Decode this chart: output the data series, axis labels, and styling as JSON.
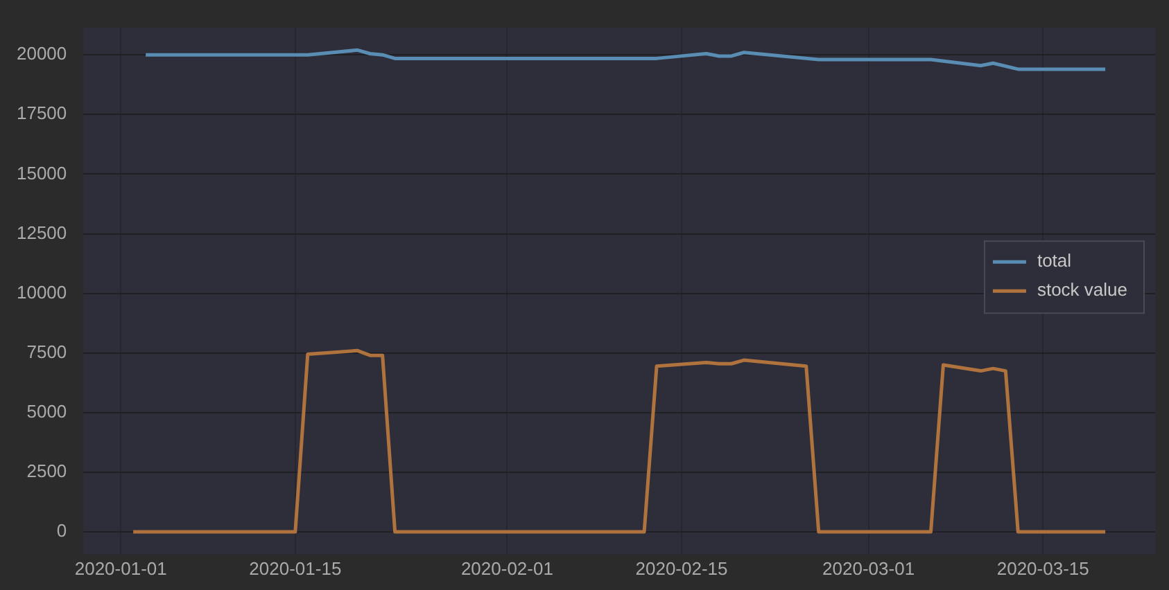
{
  "chart_data": {
    "type": "line",
    "xlim": [
      "2019-12-29",
      "2020-03-24"
    ],
    "xticks": [
      "2020-01-01",
      "2020-01-15",
      "2020-02-01",
      "2020-02-15",
      "2020-03-01",
      "2020-03-15"
    ],
    "ylim": [
      -950,
      21150
    ],
    "yticks": [
      0,
      2500,
      5000,
      7500,
      10000,
      12500,
      15000,
      17500,
      20000
    ],
    "grid": true,
    "legend": "right",
    "series": [
      {
        "name": "total",
        "color": "#5a8db3",
        "x": [
          "2020-01-03",
          "2020-01-16",
          "2020-01-20",
          "2020-01-21",
          "2020-01-22",
          "2020-01-23",
          "2020-02-13",
          "2020-02-17",
          "2020-02-18",
          "2020-02-19",
          "2020-02-20",
          "2020-02-26",
          "2020-03-06",
          "2020-03-10",
          "2020-03-11",
          "2020-03-13",
          "2020-03-20"
        ],
        "values": [
          20000,
          20000,
          20200,
          20050,
          20000,
          19850,
          19850,
          20050,
          19950,
          19950,
          20100,
          19800,
          19800,
          19550,
          19650,
          19400,
          19400
        ]
      },
      {
        "name": "stock value",
        "color": "#b0733e",
        "x": [
          "2020-01-02",
          "2020-01-15",
          "2020-01-16",
          "2020-01-20",
          "2020-01-21",
          "2020-01-22",
          "2020-01-23",
          "2020-02-12",
          "2020-02-13",
          "2020-02-17",
          "2020-02-18",
          "2020-02-19",
          "2020-02-20",
          "2020-02-25",
          "2020-02-26",
          "2020-03-06",
          "2020-03-07",
          "2020-03-10",
          "2020-03-11",
          "2020-03-12",
          "2020-03-13",
          "2020-03-20"
        ],
        "values": [
          0,
          0,
          7450,
          7600,
          7400,
          7400,
          0,
          0,
          6950,
          7100,
          7050,
          7050,
          7200,
          6950,
          0,
          0,
          7000,
          6750,
          6850,
          6750,
          0,
          0
        ]
      }
    ]
  }
}
